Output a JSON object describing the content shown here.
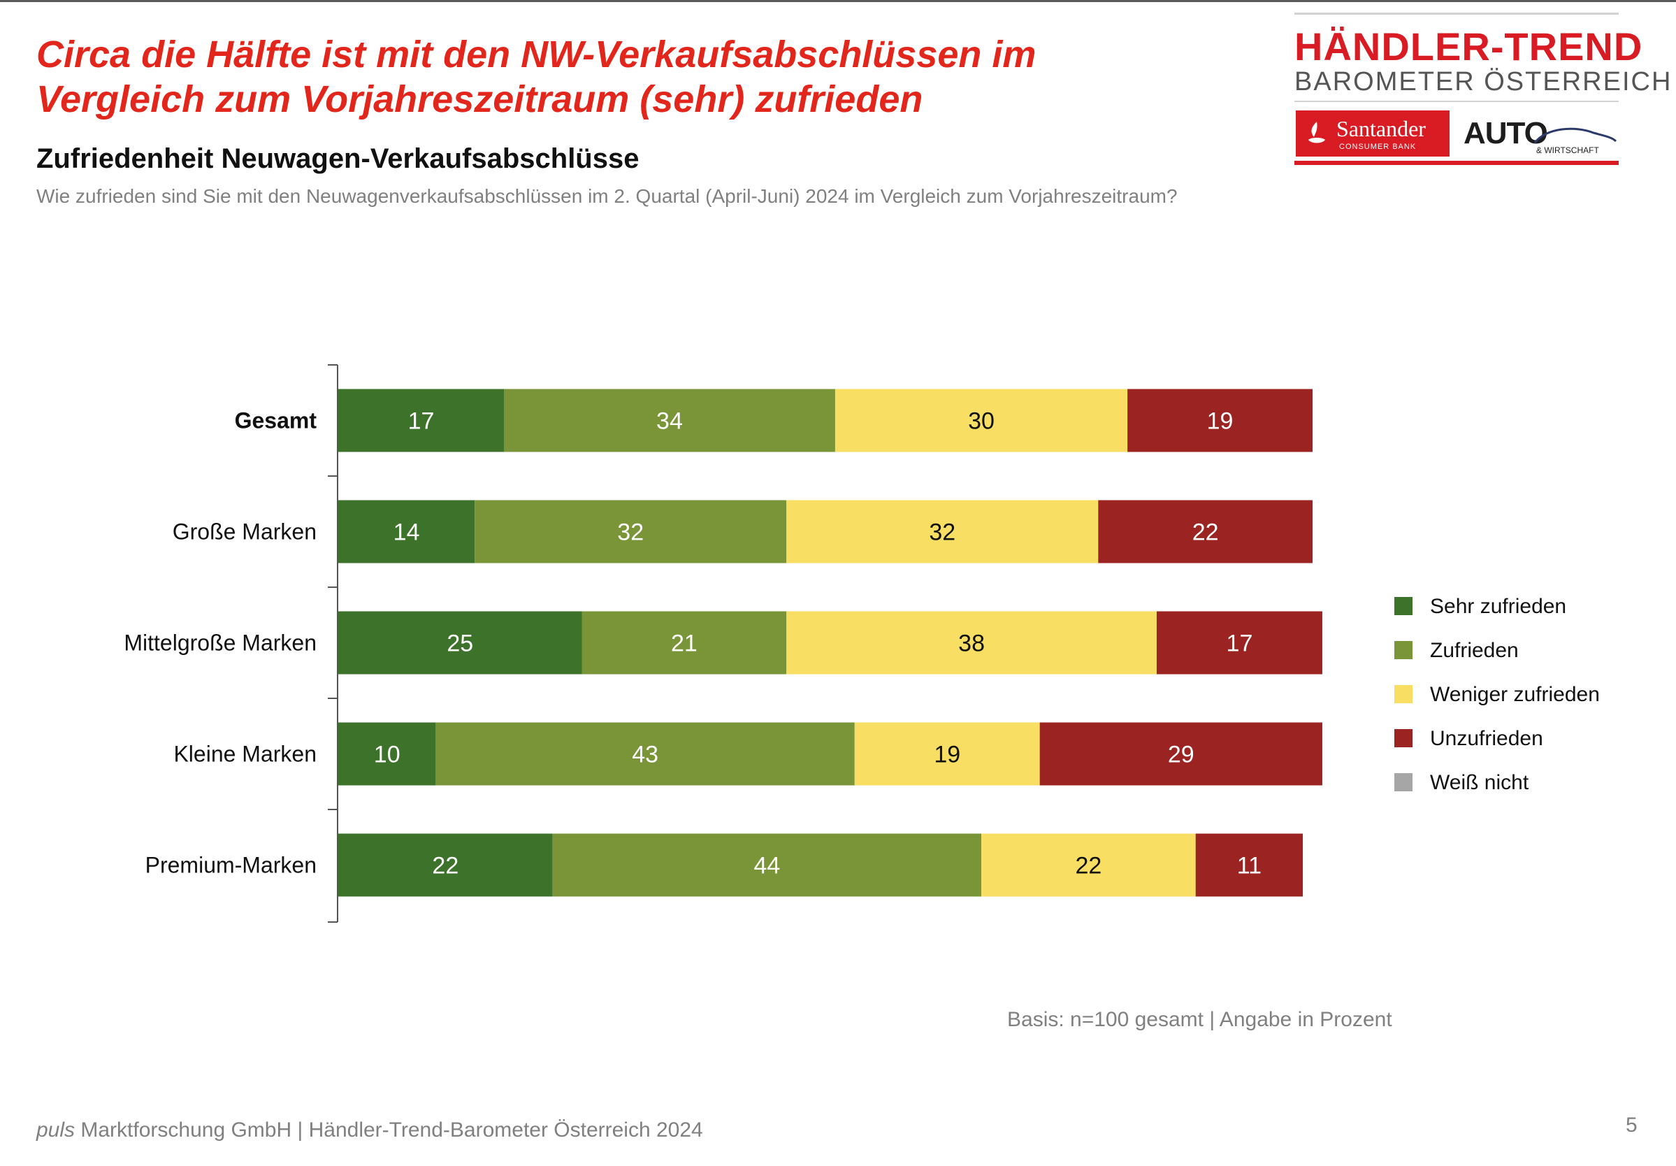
{
  "headline": {
    "line1": "Circa die Hälfte ist mit den NW-Verkaufsabschlüssen im",
    "line2": "Vergleich zum Vorjahreszeitraum (sehr) zufrieden"
  },
  "subtitle": "Zufriedenheit Neuwagen-Verkaufsabschlüsse",
  "question": "Wie zufrieden sind Sie mit den Neuwagenverkaufsabschlüssen im 2. Quartal (April-Juni) 2024 im Vergleich zum Vorjahreszeitraum?",
  "logo": {
    "title": "HÄNDLER-TREND",
    "subtitle": "BAROMETER ÖSTERREICH",
    "sponsor1": "Santander",
    "sponsor1_sub": "CONSUMER BANK",
    "sponsor2": "AUTO",
    "sponsor2_sub": "& WIRTSCHAFT"
  },
  "chart_data": {
    "type": "bar",
    "orientation": "horizontal",
    "stacked": true,
    "categories": [
      "Gesamt",
      "Große Marken",
      "Mittelgroße Marken",
      "Kleine Marken",
      "Premium-Marken"
    ],
    "bold_categories": [
      "Gesamt"
    ],
    "series": [
      {
        "name": "Sehr zufrieden",
        "color": "#3c7229",
        "label_color": "#ffffff",
        "values": [
          17,
          14,
          25,
          10,
          22
        ]
      },
      {
        "name": "Zufrieden",
        "color": "#7a9537",
        "label_color": "#ffffff",
        "values": [
          34,
          32,
          21,
          43,
          44
        ]
      },
      {
        "name": "Weniger zufrieden",
        "color": "#f8de62",
        "label_color": "#111111",
        "values": [
          30,
          32,
          38,
          19,
          22
        ]
      },
      {
        "name": "Unzufrieden",
        "color": "#9b2321",
        "label_color": "#ffffff",
        "values": [
          19,
          22,
          17,
          29,
          11
        ]
      },
      {
        "name": "Weiß nicht",
        "color": "#a6a6a6",
        "label_color": "#111111",
        "values": [
          0,
          0,
          0,
          0,
          0
        ]
      }
    ],
    "xlim": [
      0,
      100
    ],
    "legend": "right",
    "grid": false
  },
  "basis": "Basis: n=100 gesamt | Angabe in Prozent",
  "footer": {
    "company_italic": "puls",
    "rest": " Marktforschung GmbH | Händler-Trend-Barometer Österreich 2024"
  },
  "page_number": "5"
}
